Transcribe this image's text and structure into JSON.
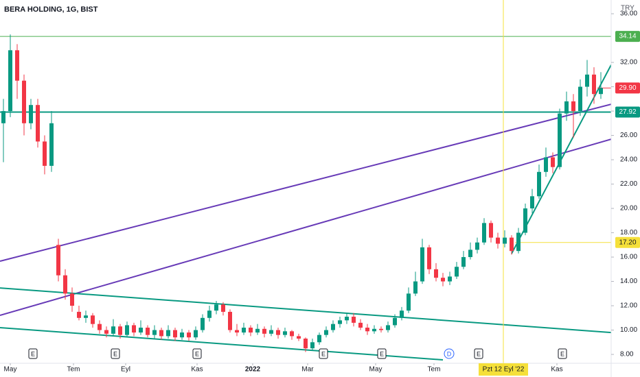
{
  "chart_data": {
    "type": "candlestick",
    "title": "BERA HOLDING, 1G, BIST",
    "currency": "TRY",
    "up_color": "#089981",
    "down_color": "#f23645",
    "xlim": [
      -0.5,
      88.5
    ],
    "ylim": [
      7.27,
      37.13
    ],
    "yticks": [
      {
        "value": 8,
        "label": "8.00"
      },
      {
        "value": 10,
        "label": "10.00"
      },
      {
        "value": 12,
        "label": "12.00"
      },
      {
        "value": 14,
        "label": "14.00"
      },
      {
        "value": 16,
        "label": "16.00"
      },
      {
        "value": 18,
        "label": "18.00"
      },
      {
        "value": 20,
        "label": "20.00"
      },
      {
        "value": 22,
        "label": "22.00"
      },
      {
        "value": 24,
        "label": "24.00"
      },
      {
        "value": 26,
        "label": "26.00"
      },
      {
        "value": 28,
        "label": "28.00"
      },
      {
        "value": 30,
        "label": "30.00"
      },
      {
        "value": 32,
        "label": "32.00"
      },
      {
        "value": 36,
        "label": "36.00"
      }
    ],
    "xticks": [
      {
        "value": 1.0,
        "label": "May"
      },
      {
        "value": 10.2,
        "label": "Tem"
      },
      {
        "value": 17.8,
        "label": "Eyl"
      },
      {
        "value": 28.2,
        "label": "Kas"
      },
      {
        "value": 36.3,
        "label": "2022",
        "bold": true
      },
      {
        "value": 44.3,
        "label": "Mar"
      },
      {
        "value": 54.2,
        "label": "May"
      },
      {
        "value": 62.7,
        "label": "Tem"
      },
      {
        "value": 80.6,
        "label": "Kas"
      }
    ],
    "ohlc": [
      [
        27,
        29,
        23.8,
        28
      ],
      [
        28,
        34.3,
        27.5,
        33
      ],
      [
        33,
        33.5,
        29,
        30.5
      ],
      [
        30.5,
        31,
        26,
        27
      ],
      [
        27,
        29,
        26.5,
        28.5
      ],
      [
        28.5,
        29,
        25,
        25.5
      ],
      [
        25.5,
        26,
        22.8,
        23.5
      ],
      [
        23.5,
        28,
        23,
        27
      ],
      [
        17,
        17.5,
        14,
        14.5
      ],
      [
        14.5,
        15,
        12.5,
        13
      ],
      [
        13,
        13.5,
        11.5,
        12
      ],
      [
        11.5,
        12,
        10.8,
        11
      ],
      [
        11,
        11.6,
        10.6,
        11.2
      ],
      [
        11.2,
        11.4,
        10.2,
        10.5
      ],
      [
        10.5,
        10.8,
        9.7,
        10
      ],
      [
        10,
        10.3,
        9.4,
        9.7
      ],
      [
        9.7,
        10.9,
        9.5,
        10.3
      ],
      [
        10.3,
        10.5,
        9.3,
        9.6
      ],
      [
        9.6,
        10.7,
        9.4,
        10.4
      ],
      [
        10.4,
        10.6,
        9.5,
        9.8
      ],
      [
        9.8,
        10.8,
        9.6,
        10.2
      ],
      [
        10.2,
        10.4,
        9.4,
        9.6
      ],
      [
        9.6,
        10.4,
        9.3,
        10
      ],
      [
        10,
        10.2,
        9.2,
        9.5
      ],
      [
        9.5,
        10.4,
        9.3,
        10
      ],
      [
        10,
        10.2,
        9.1,
        9.4
      ],
      [
        9.4,
        10.1,
        9.2,
        9.8
      ],
      [
        9.8,
        10,
        9.1,
        9.4
      ],
      [
        9.4,
        10.3,
        9.2,
        10
      ],
      [
        10,
        11.3,
        9.8,
        11
      ],
      [
        11,
        12,
        10.7,
        11.6
      ],
      [
        11.6,
        12.4,
        11.3,
        12.1
      ],
      [
        12.1,
        12.3,
        11.2,
        11.5
      ],
      [
        11.5,
        11.7,
        9.8,
        10
      ],
      [
        10,
        10.5,
        9.5,
        9.8
      ],
      [
        9.8,
        10.6,
        9.6,
        10.2
      ],
      [
        10.2,
        10.4,
        9.5,
        9.8
      ],
      [
        9.8,
        10.5,
        9.6,
        10.1
      ],
      [
        10.1,
        10.3,
        9.4,
        9.7
      ],
      [
        9.7,
        10.4,
        9.5,
        10
      ],
      [
        10,
        10.2,
        9.3,
        9.6
      ],
      [
        9.6,
        10.2,
        9.4,
        9.9
      ],
      [
        9.9,
        10,
        9.2,
        9.5
      ],
      [
        9.5,
        9.7,
        9.1,
        9.3
      ],
      [
        9.3,
        9.4,
        8.2,
        8.5
      ],
      [
        8.5,
        9.3,
        8.3,
        9
      ],
      [
        9,
        9.8,
        8.8,
        9.6
      ],
      [
        9.6,
        10.3,
        9.4,
        10
      ],
      [
        10,
        10.8,
        9.8,
        10.5
      ],
      [
        10.5,
        11.1,
        10.2,
        10.8
      ],
      [
        10.8,
        11.4,
        10.5,
        11.1
      ],
      [
        11.1,
        11.4,
        10.3,
        10.6
      ],
      [
        10.6,
        10.9,
        10,
        10.2
      ],
      [
        10.2,
        10.5,
        9.6,
        9.9
      ],
      [
        9.9,
        10.4,
        9.7,
        10.1
      ],
      [
        10.1,
        10.3,
        9.8,
        10
      ],
      [
        10,
        10.7,
        9.8,
        10.4
      ],
      [
        10.4,
        11.3,
        10.2,
        11
      ],
      [
        11,
        11.9,
        10.8,
        11.6
      ],
      [
        11.6,
        13.5,
        11.4,
        13
      ],
      [
        13,
        14.8,
        12.8,
        14
      ],
      [
        14,
        17.5,
        13.8,
        16.8
      ],
      [
        16.8,
        17,
        14.6,
        15
      ],
      [
        15,
        15.5,
        14,
        14.3
      ],
      [
        14.3,
        14.7,
        13.6,
        14
      ],
      [
        14,
        14.8,
        13.7,
        14.4
      ],
      [
        14.4,
        15.6,
        14.2,
        15.2
      ],
      [
        15.2,
        16.5,
        15,
        16
      ],
      [
        16,
        17.2,
        15.8,
        16.6
      ],
      [
        16.6,
        17.6,
        16.3,
        17.2
      ],
      [
        17.2,
        19.2,
        17,
        18.8
      ],
      [
        18.8,
        19,
        17.2,
        17.6
      ],
      [
        17.6,
        18,
        16.7,
        17.1
      ],
      [
        17.1,
        18.2,
        16.8,
        17.6
      ],
      [
        17.6,
        17.8,
        16.2,
        16.5
      ],
      [
        16.5,
        18.4,
        16.3,
        18
      ],
      [
        18,
        20.4,
        17.8,
        20
      ],
      [
        20,
        21.6,
        19.6,
        21
      ],
      [
        21,
        23.6,
        20.8,
        23
      ],
      [
        23,
        25,
        22.6,
        24.2
      ],
      [
        24.2,
        24.6,
        22.9,
        23.4
      ],
      [
        23.4,
        28.2,
        23.2,
        27.8
      ],
      [
        27.8,
        29.6,
        27.2,
        28.8
      ],
      [
        28.8,
        29.4,
        25.8,
        28
      ],
      [
        28,
        30.6,
        27.6,
        30
      ],
      [
        30,
        32.2,
        29.2,
        31
      ],
      [
        31,
        31.6,
        28.6,
        29.4
      ],
      [
        29.4,
        31.2,
        29,
        29.9
      ]
    ],
    "levels": [
      {
        "value": 34.14,
        "color": "#4caf50",
        "start": -0.5,
        "width": 1
      },
      {
        "value": 29.9,
        "label": "29.90",
        "color": "#f23645"
      },
      {
        "value": 27.92,
        "color": "#089981",
        "start": -0.5,
        "width": 2
      },
      {
        "value": 17.2,
        "label": "17.20",
        "color": "#f5e03a",
        "text_color": "#131722",
        "start": 74.5,
        "width": 1
      }
    ],
    "trendlines": [
      {
        "x": [
          -0.5,
          88.5
        ],
        "y": [
          15.66,
          28.56
        ],
        "color": "#673ab7"
      },
      {
        "x": [
          -0.5,
          88.5
        ],
        "y": [
          11.21,
          25.69
        ],
        "color": "#673ab7"
      },
      {
        "x": [
          -0.5,
          88.5
        ],
        "y": [
          13.46,
          9.8
        ],
        "color": "#089981"
      },
      {
        "x": [
          -0.5,
          64
        ],
        "y": [
          10.2,
          7.55
        ],
        "color": "#089981"
      },
      {
        "x": [
          74,
          88.5
        ],
        "y": [
          16.28,
          31.8
        ],
        "color": "#089981"
      }
    ],
    "events": [
      {
        "x": 4.3,
        "label": "E"
      },
      {
        "x": 16.3,
        "label": "E"
      },
      {
        "x": 28.2,
        "label": "E"
      },
      {
        "x": 46.6,
        "label": "E"
      },
      {
        "x": 55.1,
        "label": "E"
      },
      {
        "x": 64.9,
        "label": "D",
        "color": "#2962ff"
      },
      {
        "x": 69.2,
        "label": "E"
      },
      {
        "x": 81.4,
        "label": "E"
      }
    ],
    "crosshair": {
      "value": 72.8,
      "label": "Pzt 12 Eyl '22",
      "color": "#f5e03a"
    }
  }
}
